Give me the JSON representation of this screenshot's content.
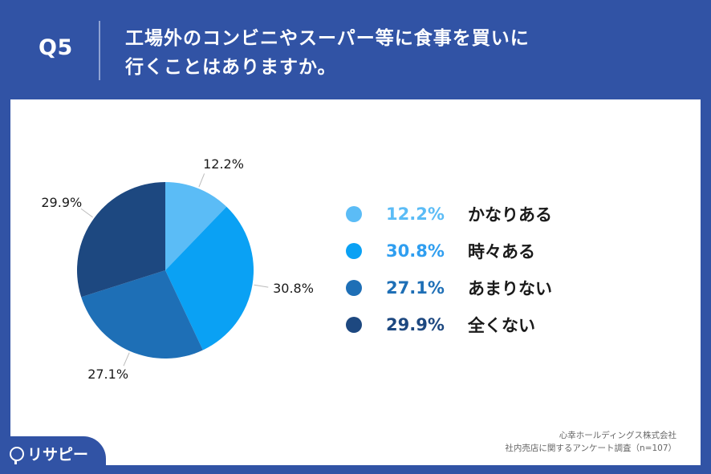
{
  "header": {
    "q_label": "Q5",
    "question_line1": "工場外のコンビニやスーパー等に食事を買いに",
    "question_line2": "行くことはありますか。"
  },
  "chart_data": {
    "type": "pie",
    "categories": [
      "かなりある",
      "時々ある",
      "あまりない",
      "全くない"
    ],
    "values": [
      12.2,
      30.8,
      27.1,
      29.9
    ],
    "labels": [
      "12.2%",
      "30.8%",
      "27.1%",
      "29.9%"
    ],
    "colors": [
      "#5bbcf6",
      "#0aa1f4",
      "#1e6fb6",
      "#1d4880"
    ],
    "legend_text_colors": [
      "#5bbcf6",
      "#2f9ef0",
      "#1e6fb6",
      "#1d4880"
    ],
    "start": "12 o'clock, clockwise",
    "legend_position": "right"
  },
  "legend": [
    {
      "pct": "12.2%",
      "label": "かなりある"
    },
    {
      "pct": "30.8%",
      "label": "時々ある"
    },
    {
      "pct": "27.1%",
      "label": "あまりない"
    },
    {
      "pct": "29.9%",
      "label": "全くない"
    }
  ],
  "source": {
    "line1": "心幸ホールディングス株式会社",
    "line2": "社内売店に関するアンケート調査（n=107）"
  },
  "logo": {
    "text": "リサピー"
  }
}
